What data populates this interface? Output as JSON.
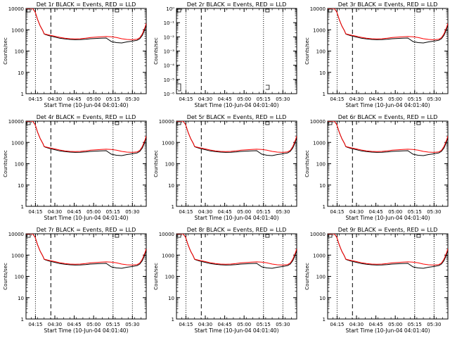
{
  "shared": {
    "xlabel": "Start Time (10-Jun-04 04:01:40)",
    "ylabel": "Counts/sec",
    "x_tick_labels": [
      "04:15",
      "04:30",
      "04:45",
      "05:00",
      "05:15",
      "05:30"
    ],
    "event_color": "#000000",
    "lld_color": "#ff0000",
    "xlim_minutes": [
      6,
      99
    ]
  },
  "chart_data": [
    {
      "title": "Det 1r BLACK = Events, RED = LLD",
      "type": "line",
      "yscale": "log",
      "ylim": [
        1,
        10000
      ],
      "y_tick_labels": [
        "1",
        "10",
        "100",
        "1000",
        "10000"
      ],
      "empty": false
    },
    {
      "title": "Det 2r BLACK = Events, RED = LLD",
      "type": "line",
      "yscale": "log",
      "ylim": [
        1e-06,
        1
      ],
      "y_tick_labels": [
        "10⁻⁶",
        "10⁻⁵",
        "10⁻⁴",
        "10⁻³",
        "10⁻²",
        "10⁻¹",
        "10⁰"
      ],
      "empty": true
    },
    {
      "title": "Det 3r BLACK = Events, RED = LLD",
      "type": "line",
      "yscale": "log",
      "ylim": [
        1,
        10000
      ],
      "y_tick_labels": [
        "1",
        "10",
        "100",
        "1000",
        "10000"
      ],
      "empty": false
    },
    {
      "title": "Det 4r BLACK = Events, RED = LLD",
      "type": "line",
      "yscale": "log",
      "ylim": [
        1,
        10000
      ],
      "y_tick_labels": [
        "1",
        "10",
        "100",
        "1000",
        "10000"
      ],
      "empty": false
    },
    {
      "title": "Det 5r BLACK = Events, RED = LLD",
      "type": "line",
      "yscale": "log",
      "ylim": [
        1,
        10000
      ],
      "y_tick_labels": [
        "1",
        "10",
        "100",
        "1000",
        "10000"
      ],
      "empty": false
    },
    {
      "title": "Det 6r BLACK = Events, RED = LLD",
      "type": "line",
      "yscale": "log",
      "ylim": [
        1,
        10000
      ],
      "y_tick_labels": [
        "1",
        "10",
        "100",
        "1000",
        "10000"
      ],
      "empty": false
    },
    {
      "title": "Det 7r BLACK = Events, RED = LLD",
      "type": "line",
      "yscale": "log",
      "ylim": [
        1,
        10000
      ],
      "y_tick_labels": [
        "1",
        "10",
        "100",
        "1000",
        "10000"
      ],
      "empty": false
    },
    {
      "title": "Det 8r BLACK = Events, RED = LLD",
      "type": "line",
      "yscale": "log",
      "ylim": [
        1,
        10000
      ],
      "y_tick_labels": [
        "1",
        "10",
        "100",
        "1000",
        "10000"
      ],
      "empty": false
    },
    {
      "title": "Det 9r BLACK = Events, RED = LLD",
      "type": "line",
      "yscale": "log",
      "ylim": [
        1,
        10000
      ],
      "y_tick_labels": [
        "1",
        "10",
        "100",
        "1000",
        "10000"
      ],
      "empty": false
    }
  ],
  "series_profile": {
    "x_minutes": [
      6,
      11,
      13,
      15,
      17,
      19,
      20,
      21,
      24,
      28,
      32,
      36,
      40,
      44,
      48,
      52,
      56,
      60,
      64,
      68,
      72,
      76,
      80,
      84,
      88,
      92,
      94,
      96,
      98,
      99
    ],
    "lld_values": [
      10000,
      10000,
      7000,
      3000,
      1500,
      900,
      650,
      620,
      560,
      500,
      440,
      400,
      380,
      370,
      380,
      400,
      430,
      450,
      470,
      480,
      470,
      430,
      380,
      350,
      340,
      360,
      420,
      650,
      1300,
      2000
    ],
    "events_values": [
      10000,
      10000,
      7000,
      3000,
      1500,
      900,
      640,
      600,
      520,
      460,
      400,
      370,
      350,
      340,
      345,
      360,
      380,
      390,
      400,
      410,
      280,
      250,
      240,
      270,
      290,
      320,
      380,
      550,
      1100,
      1700
    ]
  },
  "reference_lines_minutes": {
    "dotted": [
      13.3,
      73.3,
      88.3
    ],
    "dashed": [
      25.2
    ]
  }
}
